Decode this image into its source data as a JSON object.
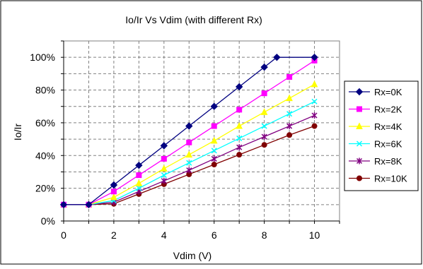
{
  "chart_data": {
    "type": "line",
    "title": "Io/Ir Vs Vdim (with different Rx)",
    "xlabel": "Vdim (V)",
    "ylabel": "Io/Ir",
    "xlim": [
      0,
      11
    ],
    "ylim": [
      0,
      1.1
    ],
    "x_ticks": [
      {
        "value": 0,
        "label": "0"
      },
      {
        "value": 2,
        "label": "2"
      },
      {
        "value": 4,
        "label": "4"
      },
      {
        "value": 6,
        "label": "6"
      },
      {
        "value": 8,
        "label": "8"
      },
      {
        "value": 10,
        "label": "10"
      }
    ],
    "y_ticks": [
      {
        "value": 0,
        "label": "0%"
      },
      {
        "value": 0.2,
        "label": "20%"
      },
      {
        "value": 0.4,
        "label": "40%"
      },
      {
        "value": 0.6,
        "label": "60%"
      },
      {
        "value": 0.8,
        "label": "80%"
      },
      {
        "value": 1.0,
        "label": "100%"
      }
    ],
    "grid": "dashed",
    "legend_position": "right",
    "series": [
      {
        "name": "Rx=0K",
        "color": "#000080",
        "marker": "diamond",
        "x": [
          0,
          1,
          2,
          3,
          4,
          5,
          6,
          7,
          8,
          8.5,
          10
        ],
        "y": [
          0.1,
          0.1,
          0.22,
          0.34,
          0.46,
          0.58,
          0.7,
          0.82,
          0.94,
          1.0,
          1.0
        ]
      },
      {
        "name": "Rx=2K",
        "color": "#ff00ff",
        "marker": "square",
        "x": [
          0,
          1,
          2,
          3,
          4,
          5,
          6,
          7,
          8,
          9,
          10
        ],
        "y": [
          0.1,
          0.1,
          0.18,
          0.28,
          0.38,
          0.48,
          0.58,
          0.68,
          0.78,
          0.88,
          0.98
        ]
      },
      {
        "name": "Rx=4K",
        "color": "#ffff00",
        "marker": "triangle",
        "x": [
          0,
          1,
          2,
          3,
          4,
          5,
          6,
          7,
          8,
          9,
          10
        ],
        "y": [
          0.1,
          0.1,
          0.145,
          0.23,
          0.32,
          0.405,
          0.49,
          0.58,
          0.665,
          0.75,
          0.835
        ]
      },
      {
        "name": "Rx=6K",
        "color": "#00ffff",
        "marker": "x",
        "x": [
          0,
          1,
          2,
          3,
          4,
          5,
          6,
          7,
          8,
          9,
          10
        ],
        "y": [
          0.1,
          0.1,
          0.125,
          0.2,
          0.28,
          0.355,
          0.43,
          0.505,
          0.58,
          0.655,
          0.73
        ]
      },
      {
        "name": "Rx=8K",
        "color": "#800080",
        "marker": "star",
        "x": [
          0,
          1,
          2,
          3,
          4,
          5,
          6,
          7,
          8,
          9,
          10
        ],
        "y": [
          0.1,
          0.1,
          0.115,
          0.18,
          0.245,
          0.31,
          0.38,
          0.45,
          0.515,
          0.58,
          0.645
        ]
      },
      {
        "name": "Rx=10K",
        "color": "#800000",
        "marker": "circle",
        "x": [
          0,
          1,
          2,
          3,
          4,
          5,
          6,
          7,
          8,
          9,
          10
        ],
        "y": [
          0.1,
          0.1,
          0.105,
          0.165,
          0.225,
          0.285,
          0.345,
          0.405,
          0.465,
          0.525,
          0.58
        ]
      }
    ]
  }
}
